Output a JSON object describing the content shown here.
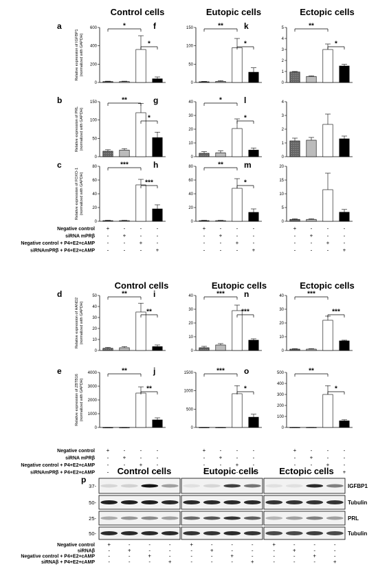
{
  "headers": {
    "top": [
      "Control cells",
      "Eutopic cells",
      "Ectopic cells"
    ],
    "middle": [
      "Control cells",
      "Eutopic cells",
      "Ectopic cells"
    ],
    "blot": [
      "Control cells",
      "Eutopic cells",
      "Ectopic cells"
    ]
  },
  "conditions_top": [
    "Negative control",
    "siRNA mPRβ",
    "Negative control + P4+E2+cAMP",
    "siRNAmPRβ + P4+E2+cAMP"
  ],
  "conditions_mid": [
    "Negative control",
    "siRNA mPRβ",
    "Negative control + P4+E2+cAMP",
    "siRNAmPRβ + P4+E2+cAMP"
  ],
  "conditions_blot": [
    "Negative control",
    "siRNAβ",
    "Negative control + P4+E2+cAMP",
    "siRNAβ + P4+E2+cAMP"
  ],
  "signs": [
    [
      "+",
      "-",
      "-",
      "-"
    ],
    [
      "-",
      "+",
      "-",
      "-"
    ],
    [
      "-",
      "-",
      "+",
      "-"
    ],
    [
      "-",
      "-",
      "-",
      "+"
    ]
  ],
  "chart_data": [
    {
      "panel": "a",
      "type": "bar",
      "group": "Control cells",
      "ylabel": "Relative expression of IGFBP1 (normalized with GAPDH)",
      "ylim": [
        0,
        600
      ],
      "yticks": [
        0,
        200,
        400,
        600
      ],
      "values": [
        10,
        10,
        360,
        40
      ],
      "errors": [
        4,
        4,
        150,
        20
      ],
      "sig": [
        {
          "from": 0,
          "to": 2,
          "label": "*"
        },
        {
          "from": 2,
          "to": 3,
          "label": "*"
        }
      ]
    },
    {
      "panel": "f",
      "type": "bar",
      "group": "Eutopic cells",
      "ylabel": "",
      "ylim": [
        0,
        150
      ],
      "yticks": [
        0,
        50,
        100,
        150
      ],
      "values": [
        2,
        3,
        95,
        28
      ],
      "errors": [
        1,
        2,
        25,
        12
      ],
      "sig": [
        {
          "from": 0,
          "to": 2,
          "label": "**"
        },
        {
          "from": 2,
          "to": 3,
          "label": "*"
        }
      ]
    },
    {
      "panel": "k",
      "type": "bar",
      "group": "Ectopic cells",
      "ylabel": "",
      "ylim": [
        0,
        5
      ],
      "yticks": [
        0,
        1,
        2,
        3,
        4,
        5
      ],
      "values": [
        0.95,
        0.55,
        3.0,
        1.5
      ],
      "errors": [
        0.05,
        0.05,
        0.5,
        0.15
      ],
      "sig": [
        {
          "from": 0,
          "to": 2,
          "label": "**"
        },
        {
          "from": 2,
          "to": 3,
          "label": "*"
        }
      ]
    },
    {
      "panel": "b",
      "type": "bar",
      "group": "Control cells",
      "ylabel": "Relative expression of PRL (normalized with GAPDH)",
      "ylim": [
        0,
        150
      ],
      "yticks": [
        0,
        50,
        100,
        150
      ],
      "values": [
        15,
        18,
        120,
        52
      ],
      "errors": [
        4,
        4,
        25,
        15
      ],
      "sig": [
        {
          "from": 0,
          "to": 2,
          "label": "**"
        },
        {
          "from": 2,
          "to": 3,
          "label": "*"
        }
      ]
    },
    {
      "panel": "g",
      "type": "bar",
      "group": "Eutopic cells",
      "ylabel": "",
      "ylim": [
        0,
        40
      ],
      "yticks": [
        0,
        10,
        20,
        30,
        40
      ],
      "values": [
        2.5,
        2.8,
        20.5,
        4.8
      ],
      "errors": [
        1.2,
        1.5,
        7,
        1.5
      ],
      "sig": [
        {
          "from": 0,
          "to": 2,
          "label": "*"
        },
        {
          "from": 2,
          "to": 3,
          "label": "*"
        }
      ]
    },
    {
      "panel": "l",
      "type": "bar",
      "group": "Ectopic cells",
      "ylabel": "",
      "ylim": [
        0,
        4
      ],
      "yticks": [
        0,
        1,
        2,
        3,
        4
      ],
      "values": [
        1.15,
        1.2,
        2.35,
        1.3
      ],
      "errors": [
        0.2,
        0.2,
        0.75,
        0.2
      ],
      "sig": []
    },
    {
      "panel": "c",
      "type": "bar",
      "group": "Control cells",
      "ylabel": "Relative expression of FOXO-1 (normalized with GAPDH)",
      "ylim": [
        0,
        80
      ],
      "yticks": [
        0,
        20,
        40,
        60,
        80
      ],
      "values": [
        1,
        1,
        53,
        18
      ],
      "errors": [
        0.5,
        0.5,
        8,
        6
      ],
      "sig": [
        {
          "from": 0,
          "to": 2,
          "label": "***"
        },
        {
          "from": 2,
          "to": 3,
          "label": "***"
        }
      ]
    },
    {
      "panel": "h",
      "type": "bar",
      "group": "Eutopic cells",
      "ylabel": "",
      "ylim": [
        0,
        80
      ],
      "yticks": [
        0,
        20,
        40,
        60,
        80
      ],
      "values": [
        1,
        1,
        48,
        13
      ],
      "errors": [
        0.5,
        0.5,
        14,
        5
      ],
      "sig": [
        {
          "from": 0,
          "to": 2,
          "label": "**"
        },
        {
          "from": 2,
          "to": 3,
          "label": "*"
        }
      ]
    },
    {
      "panel": "m",
      "type": "bar",
      "group": "Ectopic cells",
      "ylabel": "",
      "ylim": [
        0,
        20
      ],
      "yticks": [
        0,
        5,
        10,
        15,
        20
      ],
      "values": [
        0.7,
        0.7,
        11.5,
        3.3
      ],
      "errors": [
        0.2,
        0.2,
        6,
        1
      ],
      "sig": []
    },
    {
      "panel": "d",
      "type": "bar",
      "group": "Control cells",
      "ylabel": "Relative expression of HAND2 (normalized with GAPDH)",
      "ylim": [
        0,
        50
      ],
      "yticks": [
        0,
        10,
        20,
        30,
        40,
        50
      ],
      "values": [
        2,
        2.5,
        35,
        3.5
      ],
      "errors": [
        0.8,
        1,
        8,
        1.5
      ],
      "sig": [
        {
          "from": 0,
          "to": 2,
          "label": "**"
        },
        {
          "from": 2,
          "to": 3,
          "label": "**"
        }
      ]
    },
    {
      "panel": "i",
      "type": "bar",
      "group": "Eutopic cells",
      "ylabel": "",
      "ylim": [
        0,
        40
      ],
      "yticks": [
        0,
        10,
        20,
        30,
        40
      ],
      "values": [
        2,
        4,
        29,
        7.5
      ],
      "errors": [
        1,
        1,
        4,
        1
      ],
      "sig": [
        {
          "from": 0,
          "to": 2,
          "label": "***"
        },
        {
          "from": 2,
          "to": 3,
          "label": "***"
        }
      ]
    },
    {
      "panel": "n",
      "type": "bar",
      "group": "Ectopic cells",
      "ylabel": "",
      "ylim": [
        0,
        40
      ],
      "yticks": [
        0,
        10,
        20,
        30,
        40
      ],
      "values": [
        1,
        1,
        22,
        7
      ],
      "errors": [
        0.3,
        0.3,
        3,
        0.5
      ],
      "sig": [
        {
          "from": 0,
          "to": 2,
          "label": "***"
        },
        {
          "from": 2,
          "to": 3,
          "label": "***"
        }
      ]
    },
    {
      "panel": "e",
      "type": "bar",
      "group": "Control cells",
      "ylabel": "Relative expression of ZBTB16 (normalized with GAPDH)",
      "ylim": [
        0,
        4000
      ],
      "yticks": [
        0,
        1000,
        2000,
        3000,
        4000
      ],
      "values": [
        2,
        2,
        2500,
        550
      ],
      "errors": [
        1,
        1,
        450,
        150
      ],
      "sig": [
        {
          "from": 0,
          "to": 2,
          "label": "**"
        },
        {
          "from": 2,
          "to": 3,
          "label": "**"
        }
      ]
    },
    {
      "panel": "j",
      "type": "bar",
      "group": "Eutopic cells",
      "ylabel": "",
      "ylim": [
        0,
        1500
      ],
      "yticks": [
        0,
        500,
        1000,
        1500
      ],
      "values": [
        2,
        2,
        920,
        280
      ],
      "errors": [
        1,
        1,
        220,
        80
      ],
      "sig": [
        {
          "from": 0,
          "to": 2,
          "label": "***"
        },
        {
          "from": 2,
          "to": 3,
          "label": "*"
        }
      ]
    },
    {
      "panel": "o",
      "type": "bar",
      "group": "Ectopic cells",
      "ylabel": "",
      "ylim": [
        0,
        500
      ],
      "yticks": [
        0,
        100,
        200,
        300,
        400,
        500
      ],
      "values": [
        1,
        1,
        300,
        60
      ],
      "errors": [
        0.5,
        0.5,
        80,
        10
      ],
      "sig": [
        {
          "from": 0,
          "to": 2,
          "label": "**"
        },
        {
          "from": 2,
          "to": 3,
          "label": "*"
        }
      ]
    }
  ],
  "blot": {
    "panel": "p",
    "rows": [
      {
        "protein": "IGFBP1",
        "marker": "37-",
        "intensities": [
          [
            0.1,
            0.12,
            1.0,
            0.35
          ],
          [
            0.05,
            0.1,
            0.8,
            0.55
          ],
          [
            0.05,
            0.05,
            0.9,
            0.5
          ]
        ]
      },
      {
        "protein": "Tubulin",
        "marker": "50-",
        "intensities": [
          [
            0.95,
            0.95,
            0.95,
            0.9
          ],
          [
            0.9,
            0.9,
            0.9,
            0.9
          ],
          [
            0.85,
            0.85,
            0.85,
            0.85
          ]
        ]
      },
      {
        "protein": "PRL",
        "marker": "25-",
        "intensities": [
          [
            0.3,
            0.4,
            0.45,
            0.35
          ],
          [
            0.6,
            0.7,
            0.85,
            0.65
          ],
          [
            0.25,
            0.35,
            0.5,
            0.35
          ]
        ]
      },
      {
        "protein": "Tubulin",
        "marker": "50-",
        "intensities": [
          [
            0.9,
            0.9,
            0.9,
            0.9
          ],
          [
            0.85,
            0.85,
            0.9,
            0.85
          ],
          [
            0.75,
            0.75,
            0.8,
            0.75
          ]
        ]
      }
    ]
  },
  "colors": {
    "bars": [
      "#555555",
      "#bbbbbb",
      "#ffffff",
      "#000000"
    ],
    "blot_bg": "#f2f2f2"
  }
}
